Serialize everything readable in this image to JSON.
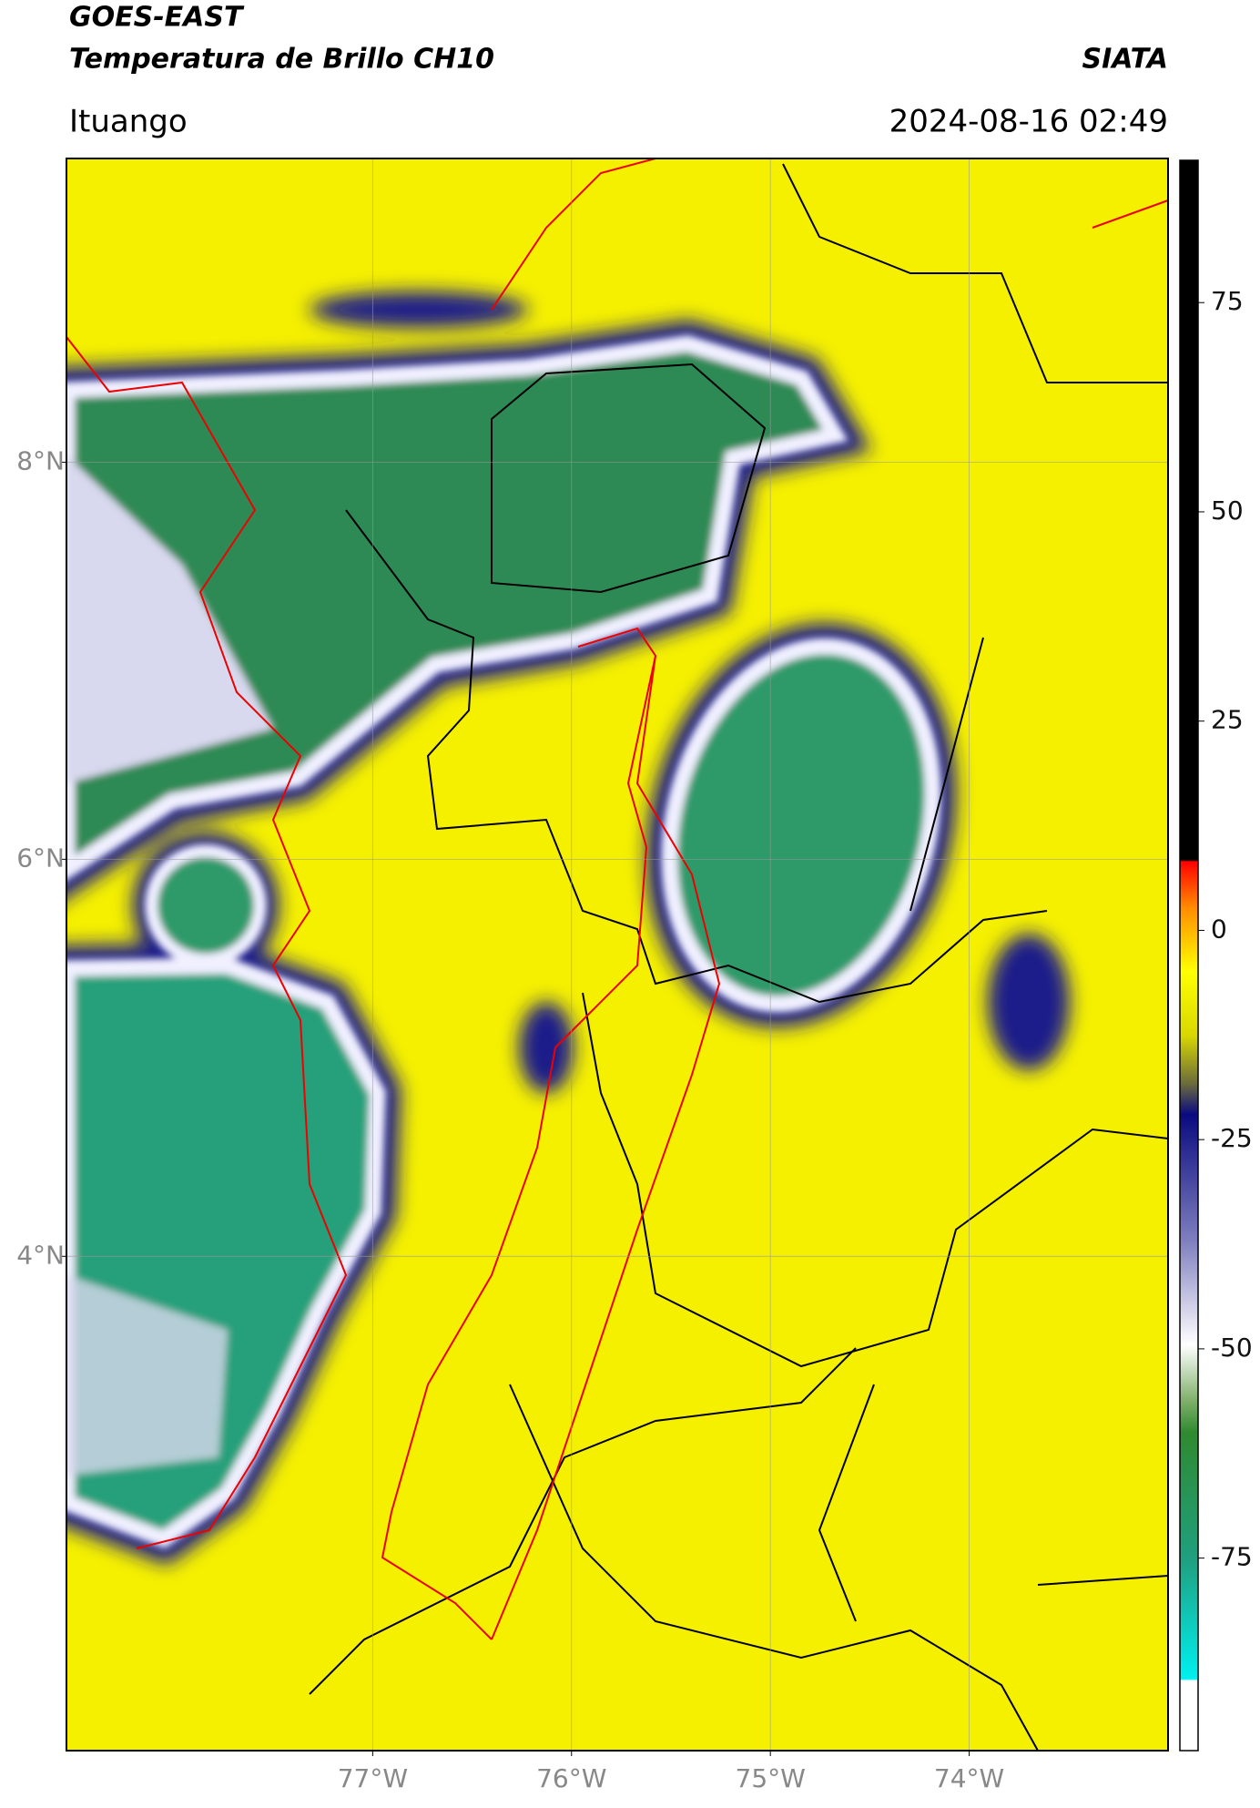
{
  "chart_data": {
    "type": "map",
    "title": "GOES-EAST",
    "subtitle": "Temperatura de Brillo CH10",
    "source": "SIATA",
    "location": "Ituango",
    "datetime": "2024-08-16 02:49",
    "xlim": [
      -78.54,
      -73.0
    ],
    "ylim": [
      1.51,
      9.53
    ],
    "xticks": [
      {
        "value": -77,
        "label": "77°W"
      },
      {
        "value": -76,
        "label": "76°W"
      },
      {
        "value": -75,
        "label": "75°W"
      },
      {
        "value": -74,
        "label": "74°W"
      }
    ],
    "yticks": [
      {
        "value": 4,
        "label": "4°N"
      },
      {
        "value": 6,
        "label": "6°N"
      },
      {
        "value": 8,
        "label": "8°N"
      }
    ],
    "grid": true,
    "colorbar": {
      "lim": [
        -98,
        92
      ],
      "ticks": [
        -75,
        -50,
        -25,
        0,
        25,
        50,
        75
      ]
    }
  }
}
